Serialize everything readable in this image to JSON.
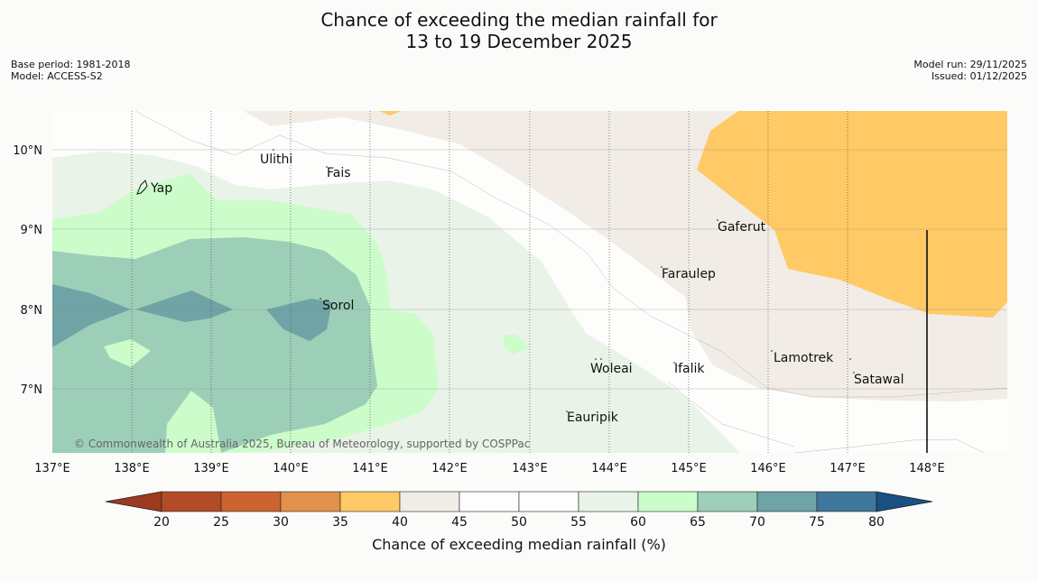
{
  "title": {
    "line1": "Chance of exceeding the median rainfall for",
    "line2": "13 to 19 December 2025"
  },
  "meta_left": {
    "base_period": "Base period: 1981-2018",
    "model": "Model: ACCESS-S2"
  },
  "meta_right": {
    "model_run": "Model run: 29/11/2025",
    "issued": "Issued: 01/12/2025"
  },
  "map": {
    "lon_labels": [
      "137°E",
      "138°E",
      "139°E",
      "140°E",
      "141°E",
      "142°E",
      "143°E",
      "144°E",
      "145°E",
      "146°E",
      "147°E",
      "148°E"
    ],
    "lat_labels": [
      "10°N",
      "9°N",
      "8°N",
      "7°N"
    ],
    "places": {
      "yap": "Yap",
      "ulithi": "Ulithi",
      "fais": "Fais",
      "sorol": "Sorol",
      "gaferut": "Gaferut",
      "faraulep": "Faraulep",
      "woleai": "Woleai",
      "ifalik": "Ifalik",
      "lamotrek": "Lamotrek",
      "satawal": "Satawal",
      "eauripik": "Eauripik"
    },
    "copyright": "© Commonwealth of Australia 2025, Bureau of Meteorology, supported by COSPPac"
  },
  "colorbar": {
    "ticks": [
      "20",
      "25",
      "30",
      "35",
      "40",
      "45",
      "50",
      "55",
      "60",
      "65",
      "70",
      "75",
      "80"
    ],
    "colors": [
      "#b34b27",
      "#cc6330",
      "#e1914a",
      "#ffc966",
      "#f2ece6",
      "#fdfefc",
      "#fdfefc",
      "#eaf3e8",
      "#ccfcca",
      "#9dcfb8",
      "#6fa3a5",
      "#3f769b"
    ],
    "low_color": "#9c3a20",
    "high_color": "#1a4f82",
    "label": "Chance of exceeding median rainfall (%)"
  },
  "colors": {
    "c40": "#ffc966",
    "c45": "#f2ece6",
    "c50": "#fdfefc",
    "c55": "#eaf3e8",
    "c60": "#ccfcca",
    "c65": "#9dcfb8",
    "c70": "#6fa3a5"
  }
}
